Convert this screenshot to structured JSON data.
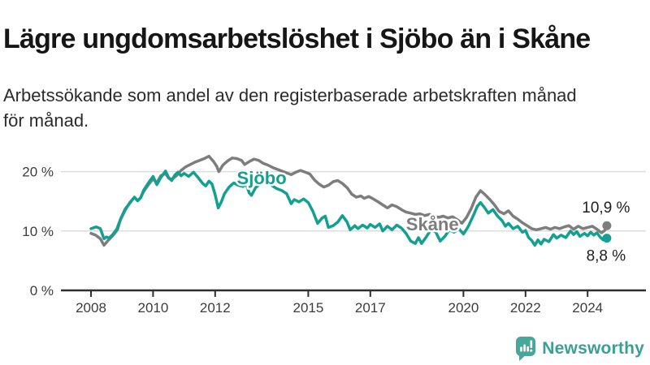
{
  "header": {
    "title": "Lägre ungdomsarbetslöshet i Sjöbo än i Skåne",
    "subtitle": "Arbetssökande som andel av den registerbaserade arbetskraften månad\nför månad."
  },
  "footer": {
    "brand": "Newsworthy",
    "brand_text_color": "#3b9f93",
    "brand_icon_color": "#47a79b"
  },
  "chart_data": {
    "type": "line",
    "title": "Lägre ungdomsarbetslöshet i Sjöbo än i Skåne",
    "subtitle": "Arbetssökande som andel av den registerbaserade arbetskraften månad för månad.",
    "unit": "%",
    "grid": "horizontal",
    "legend_position": "inline-labels",
    "xlim": [
      2007.9,
      2025.3
    ],
    "ylim": [
      0,
      24
    ],
    "x_ticks": [
      {
        "year": 2008,
        "label": "2008"
      },
      {
        "year": 2010,
        "label": "2010"
      },
      {
        "year": 2012,
        "label": "2012"
      },
      {
        "year": 2015,
        "label": "2015"
      },
      {
        "year": 2017,
        "label": "2017"
      },
      {
        "year": 2020,
        "label": "2020"
      },
      {
        "year": 2022,
        "label": "2022"
      },
      {
        "year": 2024,
        "label": "2024"
      }
    ],
    "y_ticks": [
      {
        "value": 0,
        "label": "0 %"
      },
      {
        "value": 10,
        "label": "10 %"
      },
      {
        "value": 20,
        "label": "20 %"
      }
    ],
    "axis_color": "#2f2f2f",
    "gridline_color": "#dcdcdc",
    "tick_label_color": "#3c3c3c",
    "end_label_color": "#1f1f1f",
    "series": [
      {
        "name": "Skåne",
        "color": "#7d7d7d",
        "end_value": 10.9,
        "end_label": "10,9 %",
        "end_label_dy": -16,
        "label_anchor": {
          "year": 2019.0,
          "pct": 11.2
        },
        "points": [
          [
            2008.0,
            9.6
          ],
          [
            2008.15,
            9.3
          ],
          [
            2008.3,
            8.7
          ],
          [
            2008.42,
            7.6
          ],
          [
            2008.55,
            8.4
          ],
          [
            2008.7,
            9.2
          ],
          [
            2008.85,
            10.2
          ],
          [
            2008.95,
            11.9
          ],
          [
            2009.1,
            13.5
          ],
          [
            2009.25,
            14.8
          ],
          [
            2009.4,
            15.7
          ],
          [
            2009.5,
            15.1
          ],
          [
            2009.6,
            15.6
          ],
          [
            2009.7,
            16.7
          ],
          [
            2009.85,
            17.8
          ],
          [
            2010.0,
            18.8
          ],
          [
            2010.12,
            18.1
          ],
          [
            2010.25,
            19.3
          ],
          [
            2010.4,
            19.7
          ],
          [
            2010.5,
            18.9
          ],
          [
            2010.6,
            18.7
          ],
          [
            2010.75,
            19.3
          ],
          [
            2010.9,
            20.2
          ],
          [
            2011.05,
            20.8
          ],
          [
            2011.2,
            21.2
          ],
          [
            2011.35,
            21.6
          ],
          [
            2011.5,
            21.9
          ],
          [
            2011.65,
            22.2
          ],
          [
            2011.8,
            22.6
          ],
          [
            2011.95,
            21.7
          ],
          [
            2012.05,
            20.9
          ],
          [
            2012.12,
            20.0
          ],
          [
            2012.25,
            21.1
          ],
          [
            2012.4,
            21.8
          ],
          [
            2012.55,
            22.3
          ],
          [
            2012.7,
            22.2
          ],
          [
            2012.85,
            21.9
          ],
          [
            2012.95,
            21.2
          ],
          [
            2013.1,
            21.7
          ],
          [
            2013.25,
            22.1
          ],
          [
            2013.4,
            21.9
          ],
          [
            2013.55,
            21.4
          ],
          [
            2013.7,
            21.1
          ],
          [
            2013.85,
            20.7
          ],
          [
            2014.0,
            20.4
          ],
          [
            2014.15,
            20.1
          ],
          [
            2014.3,
            19.8
          ],
          [
            2014.45,
            19.5
          ],
          [
            2014.6,
            19.9
          ],
          [
            2014.75,
            20.2
          ],
          [
            2014.9,
            19.9
          ],
          [
            2015.05,
            19.6
          ],
          [
            2015.2,
            18.6
          ],
          [
            2015.35,
            17.9
          ],
          [
            2015.5,
            17.4
          ],
          [
            2015.65,
            17.7
          ],
          [
            2015.8,
            18.3
          ],
          [
            2015.95,
            18.5
          ],
          [
            2016.1,
            18.0
          ],
          [
            2016.25,
            17.3
          ],
          [
            2016.4,
            16.2
          ],
          [
            2016.55,
            15.7
          ],
          [
            2016.7,
            15.9
          ],
          [
            2016.8,
            15.5
          ],
          [
            2016.95,
            15.8
          ],
          [
            2017.1,
            15.4
          ],
          [
            2017.25,
            14.9
          ],
          [
            2017.4,
            14.4
          ],
          [
            2017.55,
            13.9
          ],
          [
            2017.7,
            14.4
          ],
          [
            2017.85,
            14.1
          ],
          [
            2018.0,
            13.6
          ],
          [
            2018.15,
            13.2
          ],
          [
            2018.3,
            13.0
          ],
          [
            2018.45,
            12.8
          ],
          [
            2018.6,
            12.9
          ],
          [
            2018.75,
            12.6
          ],
          [
            2018.9,
            12.8
          ],
          [
            2019.05,
            12.5
          ],
          [
            2019.2,
            12.3
          ],
          [
            2019.35,
            12.5
          ],
          [
            2019.5,
            12.2
          ],
          [
            2019.65,
            12.4
          ],
          [
            2019.8,
            11.9
          ],
          [
            2019.95,
            11.3
          ],
          [
            2020.1,
            12.3
          ],
          [
            2020.25,
            13.8
          ],
          [
            2020.4,
            15.7
          ],
          [
            2020.55,
            16.8
          ],
          [
            2020.7,
            16.1
          ],
          [
            2020.85,
            15.3
          ],
          [
            2021.0,
            14.4
          ],
          [
            2021.15,
            13.3
          ],
          [
            2021.3,
            12.9
          ],
          [
            2021.45,
            13.4
          ],
          [
            2021.6,
            12.5
          ],
          [
            2021.75,
            12.0
          ],
          [
            2021.9,
            11.4
          ],
          [
            2022.05,
            10.9
          ],
          [
            2022.2,
            10.4
          ],
          [
            2022.35,
            10.2
          ],
          [
            2022.5,
            10.4
          ],
          [
            2022.65,
            10.6
          ],
          [
            2022.8,
            10.3
          ],
          [
            2022.95,
            10.6
          ],
          [
            2023.1,
            10.4
          ],
          [
            2023.25,
            10.7
          ],
          [
            2023.4,
            10.9
          ],
          [
            2023.55,
            10.3
          ],
          [
            2023.7,
            10.8
          ],
          [
            2023.85,
            10.4
          ],
          [
            2024.0,
            10.6
          ],
          [
            2024.15,
            10.8
          ],
          [
            2024.3,
            10.3
          ],
          [
            2024.45,
            9.7
          ],
          [
            2024.55,
            10.1
          ],
          [
            2024.62,
            10.9
          ]
        ]
      },
      {
        "name": "Sjöbo",
        "color": "#14a091",
        "end_value": 8.8,
        "end_label": "8,8 %",
        "end_label_dy": 28,
        "label_anchor": {
          "year": 2013.5,
          "pct": 19.0
        },
        "points": [
          [
            2008.0,
            10.4
          ],
          [
            2008.17,
            10.7
          ],
          [
            2008.3,
            10.4
          ],
          [
            2008.42,
            8.7
          ],
          [
            2008.5,
            9.0
          ],
          [
            2008.58,
            8.8
          ],
          [
            2008.7,
            9.4
          ],
          [
            2008.83,
            10.3
          ],
          [
            2008.95,
            12.0
          ],
          [
            2009.1,
            13.7
          ],
          [
            2009.25,
            14.7
          ],
          [
            2009.4,
            15.7
          ],
          [
            2009.5,
            15.1
          ],
          [
            2009.6,
            15.6
          ],
          [
            2009.7,
            16.9
          ],
          [
            2009.85,
            18.1
          ],
          [
            2010.0,
            19.2
          ],
          [
            2010.12,
            17.8
          ],
          [
            2010.25,
            19.0
          ],
          [
            2010.4,
            20.1
          ],
          [
            2010.5,
            19.0
          ],
          [
            2010.6,
            18.5
          ],
          [
            2010.7,
            19.4
          ],
          [
            2010.8,
            19.9
          ],
          [
            2010.9,
            19.3
          ],
          [
            2011.0,
            19.7
          ],
          [
            2011.15,
            19.2
          ],
          [
            2011.3,
            19.9
          ],
          [
            2011.45,
            19.0
          ],
          [
            2011.6,
            18.0
          ],
          [
            2011.7,
            17.6
          ],
          [
            2011.8,
            18.4
          ],
          [
            2011.9,
            17.9
          ],
          [
            2012.0,
            16.1
          ],
          [
            2012.1,
            13.9
          ],
          [
            2012.2,
            14.9
          ],
          [
            2012.3,
            16.3
          ],
          [
            2012.45,
            17.4
          ],
          [
            2012.6,
            18.1
          ],
          [
            2012.75,
            17.7
          ],
          [
            2012.9,
            17.5
          ],
          [
            2013.0,
            17.9
          ],
          [
            2013.1,
            16.4
          ],
          [
            2013.17,
            16.0
          ],
          [
            2013.3,
            17.3
          ],
          [
            2013.45,
            17.9
          ],
          [
            2013.6,
            18.4
          ],
          [
            2013.75,
            18.0
          ],
          [
            2013.9,
            17.4
          ],
          [
            2014.0,
            17.1
          ],
          [
            2014.15,
            16.8
          ],
          [
            2014.3,
            16.3
          ],
          [
            2014.45,
            14.6
          ],
          [
            2014.55,
            15.3
          ],
          [
            2014.7,
            14.9
          ],
          [
            2014.85,
            15.4
          ],
          [
            2015.0,
            14.8
          ],
          [
            2015.15,
            13.3
          ],
          [
            2015.3,
            11.3
          ],
          [
            2015.45,
            12.2
          ],
          [
            2015.55,
            12.5
          ],
          [
            2015.65,
            10.6
          ],
          [
            2015.8,
            10.9
          ],
          [
            2015.95,
            11.5
          ],
          [
            2016.1,
            12.6
          ],
          [
            2016.25,
            11.5
          ],
          [
            2016.35,
            10.2
          ],
          [
            2016.5,
            10.9
          ],
          [
            2016.6,
            10.4
          ],
          [
            2016.75,
            11.0
          ],
          [
            2016.9,
            10.5
          ],
          [
            2017.0,
            11.1
          ],
          [
            2017.15,
            10.6
          ],
          [
            2017.3,
            11.2
          ],
          [
            2017.4,
            10.0
          ],
          [
            2017.55,
            10.8
          ],
          [
            2017.7,
            10.2
          ],
          [
            2017.85,
            11.0
          ],
          [
            2018.0,
            10.5
          ],
          [
            2018.15,
            9.6
          ],
          [
            2018.3,
            8.3
          ],
          [
            2018.45,
            7.9
          ],
          [
            2018.55,
            8.9
          ],
          [
            2018.65,
            7.9
          ],
          [
            2018.8,
            9.0
          ],
          [
            2018.95,
            10.2
          ],
          [
            2019.1,
            9.9
          ],
          [
            2019.25,
            8.3
          ],
          [
            2019.4,
            9.1
          ],
          [
            2019.55,
            10.2
          ],
          [
            2019.7,
            9.8
          ],
          [
            2019.85,
            10.4
          ],
          [
            2020.0,
            9.5
          ],
          [
            2020.15,
            10.7
          ],
          [
            2020.3,
            12.4
          ],
          [
            2020.45,
            14.2
          ],
          [
            2020.55,
            14.8
          ],
          [
            2020.7,
            13.8
          ],
          [
            2020.8,
            13.0
          ],
          [
            2020.95,
            13.6
          ],
          [
            2021.1,
            12.5
          ],
          [
            2021.25,
            11.7
          ],
          [
            2021.35,
            10.8
          ],
          [
            2021.45,
            11.3
          ],
          [
            2021.6,
            10.4
          ],
          [
            2021.75,
            10.8
          ],
          [
            2021.9,
            9.8
          ],
          [
            2022.0,
            10.1
          ],
          [
            2022.1,
            8.9
          ],
          [
            2022.2,
            8.4
          ],
          [
            2022.3,
            7.6
          ],
          [
            2022.4,
            8.5
          ],
          [
            2022.5,
            7.8
          ],
          [
            2022.6,
            8.6
          ],
          [
            2022.75,
            8.2
          ],
          [
            2022.9,
            9.4
          ],
          [
            2023.0,
            8.8
          ],
          [
            2023.15,
            9.3
          ],
          [
            2023.3,
            8.9
          ],
          [
            2023.45,
            10.0
          ],
          [
            2023.55,
            9.4
          ],
          [
            2023.65,
            9.9
          ],
          [
            2023.75,
            9.1
          ],
          [
            2023.9,
            9.6
          ],
          [
            2024.0,
            9.2
          ],
          [
            2024.1,
            9.8
          ],
          [
            2024.2,
            9.3
          ],
          [
            2024.3,
            9.7
          ],
          [
            2024.4,
            9.0
          ],
          [
            2024.5,
            8.5
          ],
          [
            2024.62,
            8.8
          ]
        ]
      }
    ]
  }
}
